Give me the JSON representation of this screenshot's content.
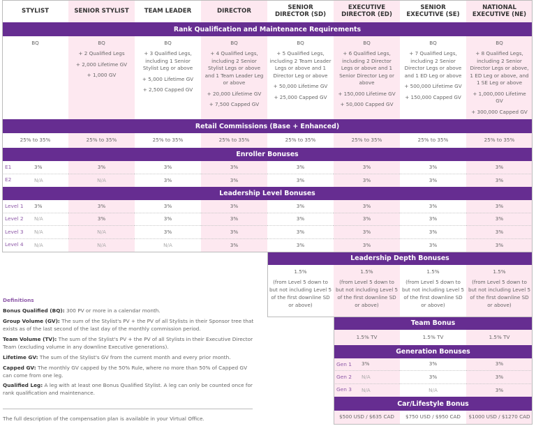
{
  "colors": {
    "accent": "#662d91",
    "stripe": "#fde8f0",
    "label": "#8e5aa8"
  },
  "ranks": [
    "STYLIST",
    "SENIOR STYLIST",
    "TEAM LEADER",
    "DIRECTOR",
    "SENIOR DIRECTOR (SD)",
    "EXECUTIVE DIRECTOR (ED)",
    "SENIOR EXECUTIVE (SE)",
    "NATIONAL EXECUTIVE (NE)"
  ],
  "sections": {
    "rank_qualification": "Rank Qualification and Maintenance Requirements",
    "retail": "Retail Commissions (Base + Enhanced)",
    "enroller": "Enroller Bonuses",
    "leadership": "Leadership Level Bonuses",
    "depth": "Leadership Depth Bonuses",
    "team": "Team Bonus",
    "generation": "Generation Bonuses",
    "car": "Car/Lifestyle Bonus"
  },
  "qualifications": [
    [
      "BQ"
    ],
    [
      "BQ",
      "+ 2 Qualified Legs",
      "+ 2,000 Lifetime GV",
      "+ 1,000 GV"
    ],
    [
      "BQ",
      "+ 3 Qualified Legs, including 1 Senior Stylist Leg or above",
      "+ 5,000 Lifetime GV",
      "+ 2,500 Capped GV"
    ],
    [
      "BQ",
      "+ 4 Qualified Legs, including 2 Senior Stylist Legs or above and 1 Team Leader Leg or above",
      "+ 20,000 Lifetime GV",
      "+ 7,500 Capped GV"
    ],
    [
      "BQ",
      "+ 5 Qualified Legs, including 2 Team Leader Legs or above and 1 Director Leg or above",
      "+ 50,000 Lifetime GV",
      "+ 25,000 Capped GV"
    ],
    [
      "BQ",
      "+ 6 Qualified Legs, including 2 Director Legs or above and 1 Senior Director Leg or above",
      "+ 150,000 Lifetime GV",
      "+ 50,000 Capped GV"
    ],
    [
      "BQ",
      "+ 7 Qualified Legs, including 2 Senior Director Legs or above and 1 ED Leg or above",
      "+ 500,000 Lifetime GV",
      "+ 150,000 Capped GV"
    ],
    [
      "BQ",
      "+ 8 Qualified Legs, including 2 Senior Director Legs or above, 1 ED Leg or above, and 1 SE Leg or above",
      "+ 1,000,000 Lifetime GV",
      "+ 300,000 Capped GV"
    ]
  ],
  "retail": [
    "25% to 35%",
    "25% to 35%",
    "25% to 35%",
    "25% to 35%",
    "25% to 35%",
    "25% to 35%",
    "25% to 35%",
    "25% to 35%"
  ],
  "enroller": [
    {
      "label": "E1",
      "values": [
        "3%",
        "3%",
        "3%",
        "3%",
        "3%",
        "3%",
        "3%",
        "3%"
      ]
    },
    {
      "label": "E2",
      "values": [
        "N/A",
        "N/A",
        "3%",
        "3%",
        "3%",
        "3%",
        "3%",
        "3%"
      ]
    }
  ],
  "leadership": [
    {
      "label": "Level 1",
      "values": [
        "3%",
        "3%",
        "3%",
        "3%",
        "3%",
        "3%",
        "3%",
        "3%"
      ]
    },
    {
      "label": "Level 2",
      "values": [
        "N/A",
        "3%",
        "3%",
        "3%",
        "3%",
        "3%",
        "3%",
        "3%"
      ]
    },
    {
      "label": "Level 3",
      "values": [
        "N/A",
        "N/A",
        "3%",
        "3%",
        "3%",
        "3%",
        "3%",
        "3%"
      ]
    },
    {
      "label": "Level 4",
      "values": [
        "N/A",
        "N/A",
        "N/A",
        "3%",
        "3%",
        "3%",
        "3%",
        "3%"
      ]
    }
  ],
  "depth": [
    {
      "rate": "1.5%",
      "note": "(from Level 5 down to but not including Level 5 of the first downline SD or above)"
    },
    {
      "rate": "1.5%",
      "note": "(from Level 5 down to but not including Level 5 of the first downline SD or above)"
    },
    {
      "rate": "1.5%",
      "note": "(from Level 5 down to but not including Level 5 of the first downline SD or above)"
    },
    {
      "rate": "1.5%",
      "note": "(from Level 5 down to but not including Level 5 of the first downline SD or above)"
    }
  ],
  "team": [
    "1.5% TV",
    "1.5% TV",
    "1.5% TV"
  ],
  "generation": [
    {
      "label": "Gen 1",
      "values": [
        "3%",
        "3%",
        "3%"
      ]
    },
    {
      "label": "Gen 2",
      "values": [
        "N/A",
        "3%",
        "3%"
      ]
    },
    {
      "label": "Gen 3",
      "values": [
        "N/A",
        "N/A",
        "3%"
      ]
    }
  ],
  "car": [
    "$500 USD / $635 CAD",
    "$750 USD / $950 CAD",
    "$1000 USD / $1270 CAD"
  ],
  "definitions": {
    "title": "Definitions",
    "items": [
      {
        "term": "Bonus Qualified (BQ):",
        "text": " 300 PV or more in a calendar month."
      },
      {
        "term": "Group Volume (GV):",
        "text": " The sum of the Stylist's PV + the PV of all Stylists in their Sponsor tree that exists as of the last second of the last day of the monthly commission period."
      },
      {
        "term": "Team Volume (TV):",
        "text": " The sum of the Stylist's PV + the PV of all Stylists in their Executive Director Team (excluding volume in any downline Executive generations)."
      },
      {
        "term": "Lifetime GV:",
        "text": " The sum of the Stylist's GV from the current month and every prior month."
      },
      {
        "term": "Capped GV:",
        "text": " The monthly GV capped by the 50% Rule, where no more than 50% of Capped GV can come from one leg."
      },
      {
        "term": "Qualified Leg:",
        "text": " A leg with at least one Bonus Qualified Stylist. A leg can only be counted once for rank qualification and maintenance."
      }
    ]
  },
  "footer": "The full description of the compensation plan is available in your Virtual Office."
}
